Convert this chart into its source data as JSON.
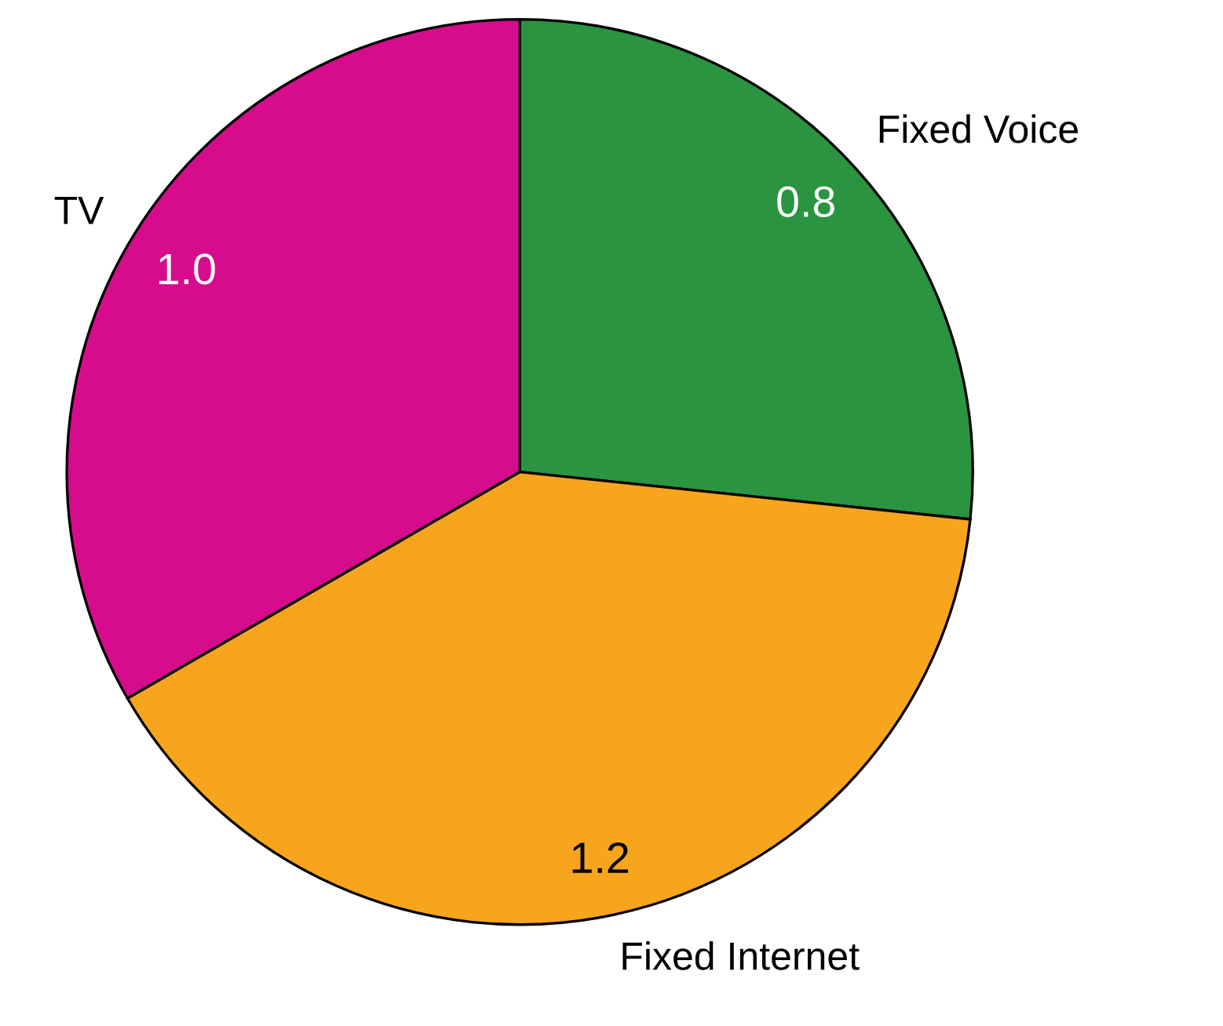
{
  "chart_data": {
    "type": "pie",
    "categories": [
      "Fixed Voice",
      "Fixed Internet",
      "TV"
    ],
    "values": [
      0.8,
      1.2,
      1.0
    ],
    "colors": [
      "#2a9441",
      "#f6a51d",
      "#d70c8c"
    ],
    "value_labels": [
      "0.8",
      "1.2",
      "1.0"
    ],
    "legend": false
  }
}
